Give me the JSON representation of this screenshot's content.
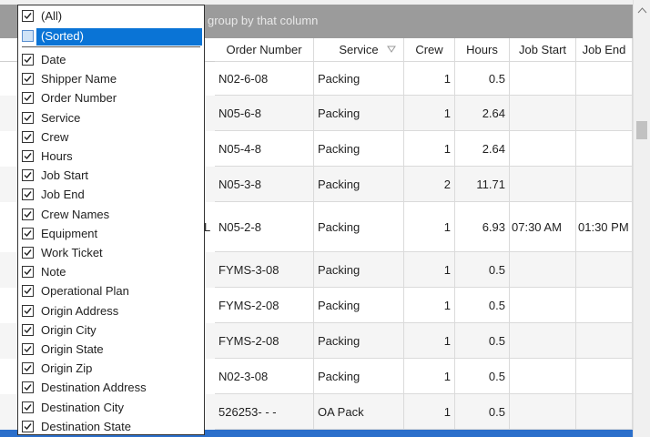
{
  "group_panel": {
    "text": "group by that column"
  },
  "grid": {
    "columns": [
      "Order Number",
      "Service",
      "Crew",
      "Hours",
      "Job Start",
      "Job End"
    ],
    "rows": [
      {
        "cells": [
          "N02-6-08",
          "Packing",
          "1",
          "0.5"
        ]
      },
      {
        "cells": [
          "N05-6-8",
          "Packing",
          "1",
          "2.64"
        ]
      },
      {
        "cells": [
          "N05-4-8",
          "Packing",
          "1",
          "2.64"
        ]
      },
      {
        "cells": [
          "N05-3-8",
          "Packing",
          "2",
          "11.71"
        ]
      },
      {
        "left": "L",
        "cells": [
          "N05-2-8",
          "Packing",
          "1",
          "6.93",
          "07:30 AM",
          "01:30 PM"
        ]
      },
      {
        "cells": [
          "FYMS-3-08",
          "Packing",
          "1",
          "0.5"
        ]
      },
      {
        "cells": [
          "FYMS-2-08",
          "Packing",
          "1",
          "0.5"
        ]
      },
      {
        "cells": [
          "FYMS-2-08",
          "Packing",
          "1",
          "0.5"
        ]
      },
      {
        "cells": [
          "N02-3-08",
          "Packing",
          "1",
          "0.5"
        ]
      },
      {
        "cells": [
          "526253- - -",
          "OA Pack",
          "1",
          "0.5"
        ]
      }
    ]
  },
  "column_chooser": {
    "special": [
      {
        "label": "(All)",
        "checked": true
      },
      {
        "label": "(Sorted)",
        "checked": false,
        "selected": true
      }
    ],
    "items": [
      "Date",
      "Shipper Name",
      "Order Number",
      "Service",
      "Crew",
      "Hours",
      "Job Start",
      "Job End",
      "Crew Names",
      "Equipment",
      "Work Ticket",
      "Note",
      "Operational Plan",
      "Origin Address",
      "Origin City",
      "Origin State",
      "Origin Zip",
      "Destination Address",
      "Destination City",
      "Destination State"
    ]
  }
}
